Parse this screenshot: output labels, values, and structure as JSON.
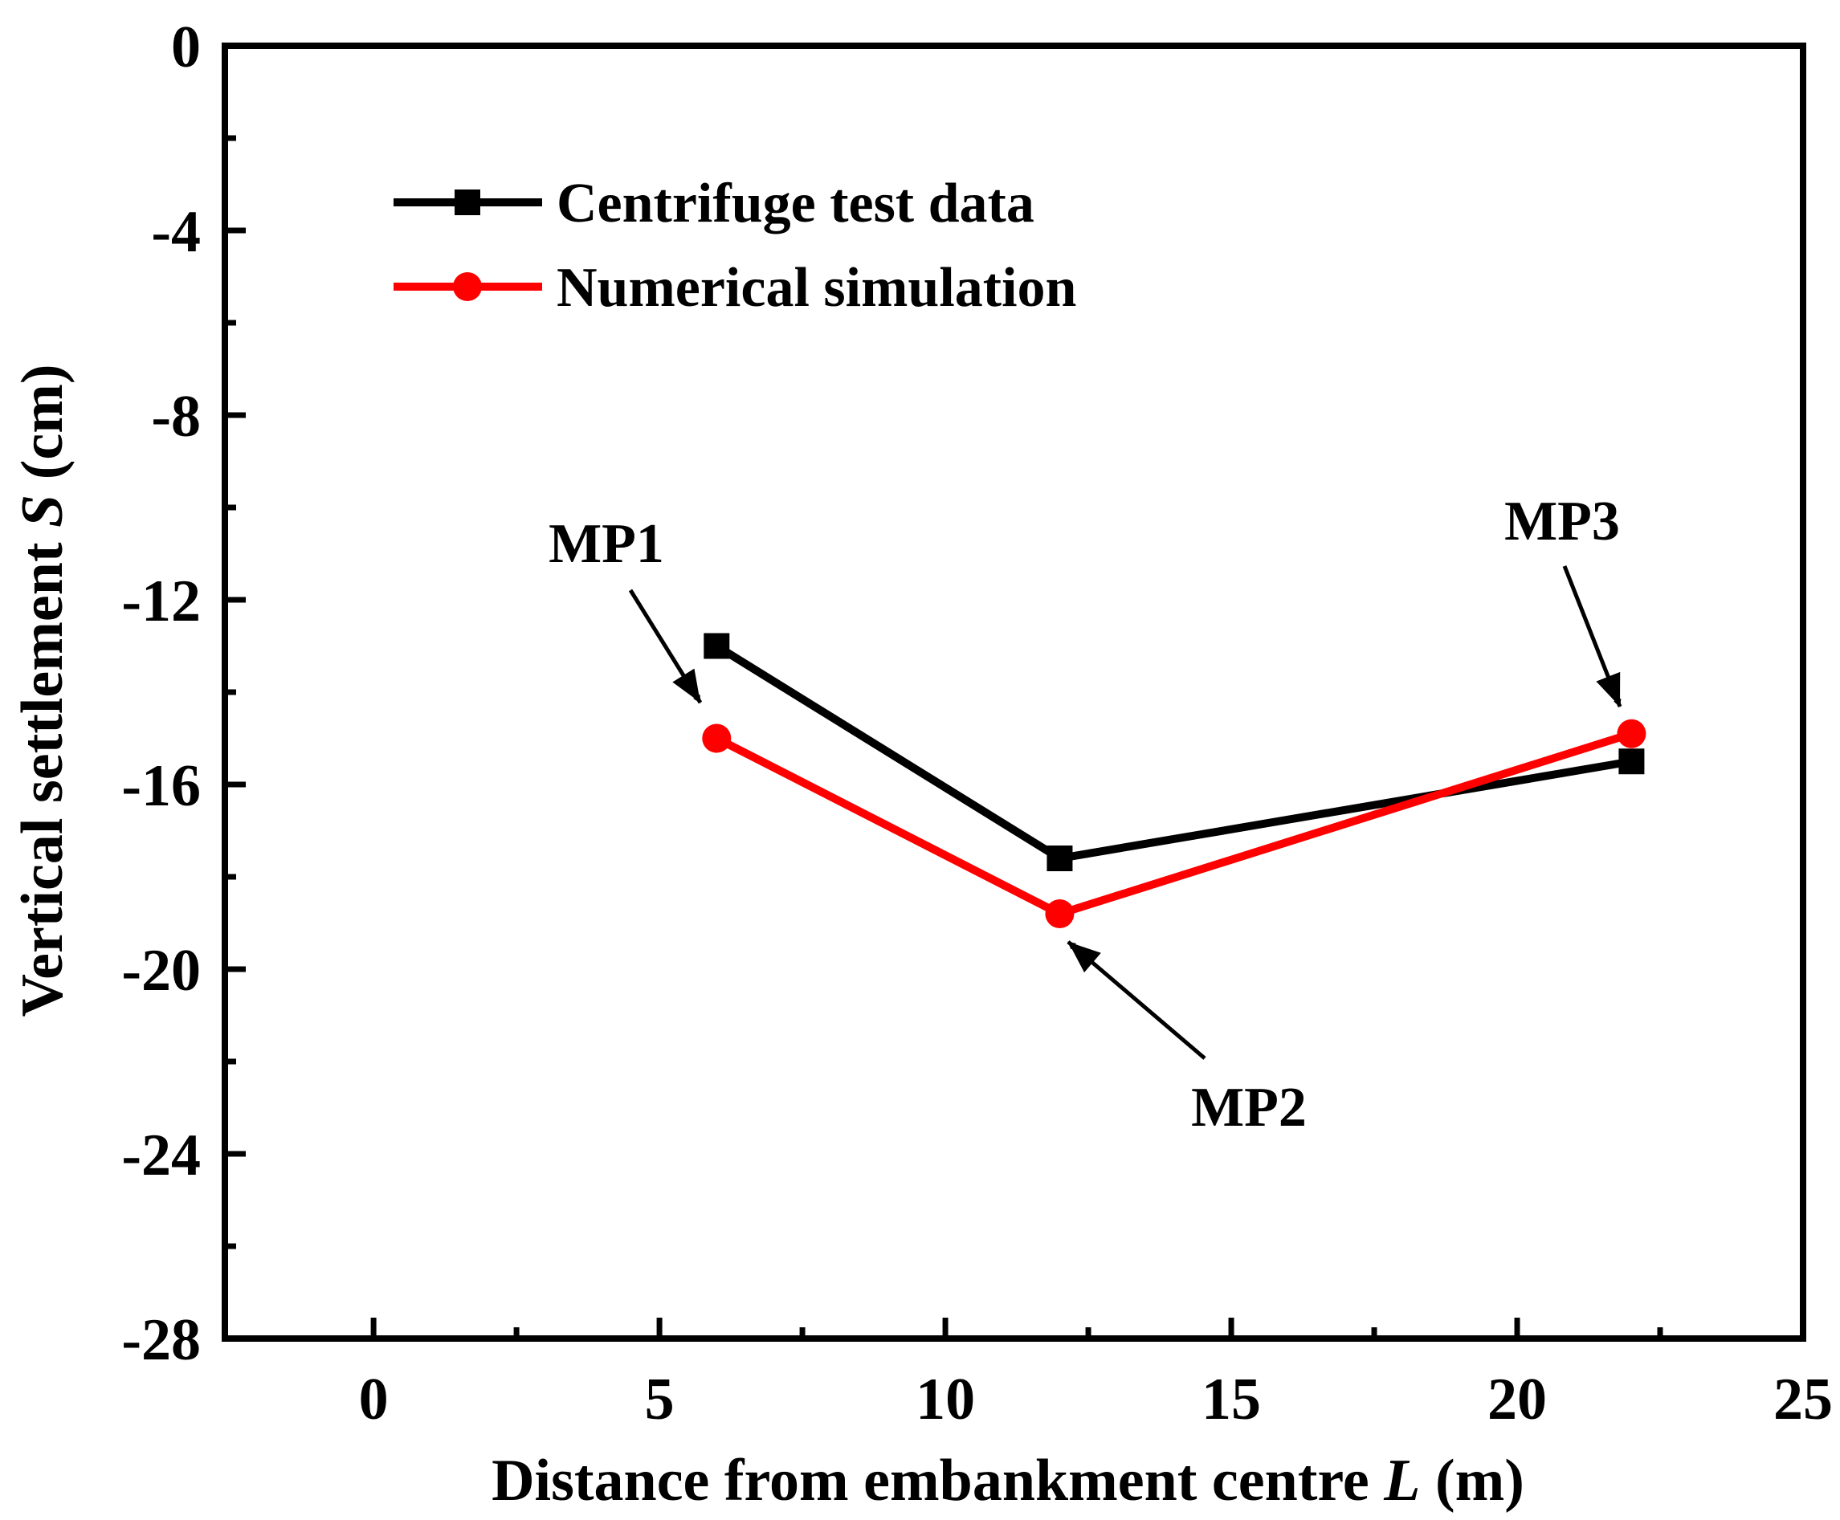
{
  "chart_data": {
    "type": "line",
    "title": "",
    "xlabel": {
      "main": "Distance from embankment centre ",
      "var": "L",
      "unit": " (m)"
    },
    "ylabel": {
      "main": "Vertical settlement ",
      "var": "S",
      "unit": " (cm)"
    },
    "xlim": [
      -2.6,
      25
    ],
    "ylim": [
      -28,
      0
    ],
    "xticks": [
      0,
      5,
      10,
      15,
      20,
      25
    ],
    "xtick_labels": [
      "0",
      "5",
      "10",
      "15",
      "20",
      "25"
    ],
    "xminor": [
      2.5,
      7.5,
      12.5,
      17.5,
      22.5
    ],
    "yticks": [
      0,
      -4,
      -8,
      -12,
      -16,
      -20,
      -24,
      -28
    ],
    "ytick_labels": [
      "0",
      "-4",
      "-8",
      "-12",
      "-16",
      "-20",
      "-24",
      "-28"
    ],
    "yminor": [
      -2,
      -6,
      -10,
      -14,
      -18,
      -22,
      -26
    ],
    "grid": false,
    "legend_position": "top-left",
    "series": [
      {
        "name": "Centrifuge test data",
        "color": "#000000",
        "marker": "square",
        "x": [
          6,
          12,
          22
        ],
        "y": [
          -13.0,
          -17.6,
          -15.5
        ]
      },
      {
        "name": "Numerical simulation",
        "color": "#ff0000",
        "marker": "circle",
        "x": [
          6,
          12,
          22
        ],
        "y": [
          -15.0,
          -18.8,
          -14.9
        ]
      }
    ],
    "annotations": [
      {
        "text": "MP1",
        "points_to": [
          6,
          -15.0
        ]
      },
      {
        "text": "MP2",
        "points_to": [
          12,
          -18.8
        ]
      },
      {
        "text": "MP3",
        "points_to": [
          22,
          -14.9
        ]
      }
    ]
  }
}
